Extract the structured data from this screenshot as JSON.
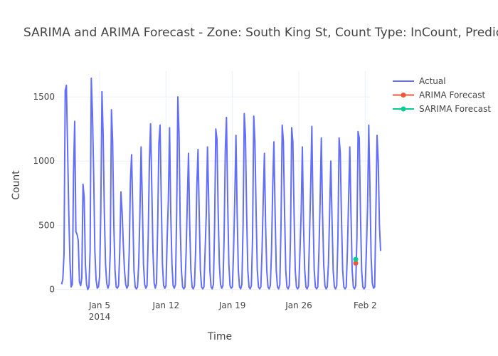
{
  "chart_data": {
    "type": "line",
    "title": "SARIMA and ARIMA Forecast - Zone: South King St, Count Type: InCount, Prediction In",
    "xlabel": "Time",
    "ylabel": "Count",
    "x_range": [
      "2013-12-31T12:00",
      "2014-02-02T12:00"
    ],
    "ylim": [
      -30,
      1700
    ],
    "y_ticks": [
      0,
      500,
      1000,
      1500
    ],
    "x_ticks": [
      {
        "date": "2014-01-05",
        "label": "Jan 5",
        "sublabel": "2014"
      },
      {
        "date": "2014-01-12",
        "label": "Jan 12",
        "sublabel": ""
      },
      {
        "date": "2014-01-19",
        "label": "Jan 19",
        "sublabel": ""
      },
      {
        "date": "2014-01-26",
        "label": "Jan 26",
        "sublabel": ""
      },
      {
        "date": "2014-02-02",
        "label": "Feb 2",
        "sublabel": ""
      }
    ],
    "grid": true,
    "legend_position": "top-right",
    "series": [
      {
        "name": "Actual",
        "color": "#636efa",
        "mode": "lines",
        "start": "2014-01-01T00:00",
        "interval_hours": 3,
        "values": [
          40,
          80,
          280,
          1550,
          1590,
          1100,
          600,
          220,
          20,
          40,
          900,
          1310,
          450,
          430,
          380,
          60,
          30,
          90,
          820,
          720,
          200,
          40,
          0,
          20,
          300,
          1645,
          1360,
          900,
          300,
          80,
          10,
          20,
          100,
          600,
          1540,
          1200,
          600,
          200,
          50,
          10,
          40,
          300,
          1400,
          1150,
          500,
          150,
          20,
          10,
          30,
          300,
          760,
          600,
          350,
          150,
          40,
          10,
          30,
          300,
          850,
          1050,
          600,
          150,
          20,
          5,
          20,
          200,
          600,
          1110,
          700,
          200,
          40,
          10,
          30,
          400,
          1000,
          1290,
          800,
          300,
          50,
          10,
          50,
          500,
          1140,
          1280,
          700,
          200,
          30,
          10,
          30,
          400,
          700,
          1260,
          600,
          200,
          30,
          10,
          40,
          600,
          1500,
          1210,
          500,
          150,
          20,
          5,
          20,
          300,
          700,
          1060,
          500,
          150,
          20,
          5,
          30,
          300,
          800,
          1090,
          600,
          150,
          20,
          5,
          20,
          300,
          600,
          1110,
          700,
          150,
          20,
          5,
          40,
          500,
          1250,
          1170,
          600,
          200,
          40,
          10,
          30,
          400,
          1080,
          1340,
          700,
          200,
          30,
          10,
          20,
          300,
          700,
          1200,
          600,
          150,
          20,
          5,
          40,
          500,
          1370,
          1200,
          600,
          150,
          20,
          5,
          30,
          400,
          1350,
          1150,
          600,
          150,
          20,
          5,
          20,
          300,
          700,
          1060,
          500,
          150,
          20,
          5,
          30,
          300,
          800,
          1150,
          600,
          150,
          20,
          5,
          40,
          500,
          1280,
          1150,
          600,
          150,
          20,
          5,
          30,
          400,
          1260,
          1150,
          600,
          150,
          20,
          5,
          20,
          300,
          600,
          1110,
          500,
          150,
          20,
          5,
          30,
          400,
          800,
          1270,
          600,
          150,
          20,
          5,
          20,
          300,
          700,
          1180,
          600,
          200,
          30,
          5,
          20,
          200,
          600,
          1000,
          550,
          150,
          20,
          5,
          30,
          400,
          1180,
          1060,
          550,
          150,
          20,
          5,
          20,
          300,
          700,
          1110,
          600,
          150,
          20,
          5,
          30,
          400,
          1230,
          1180,
          600,
          150,
          20,
          5,
          20,
          300,
          650,
          1280,
          800,
          250,
          50,
          10,
          20,
          600,
          1200,
          1000,
          500,
          300
        ]
      },
      {
        "name": "ARIMA Forecast",
        "color": "#ef553b",
        "mode": "markers",
        "points": [
          {
            "x": "2014-02-01T00:00",
            "y": 205
          }
        ]
      },
      {
        "name": "SARIMA Forecast",
        "color": "#00cc96",
        "mode": "markers",
        "points": [
          {
            "x": "2014-02-01T00:00",
            "y": 235
          }
        ]
      }
    ]
  }
}
